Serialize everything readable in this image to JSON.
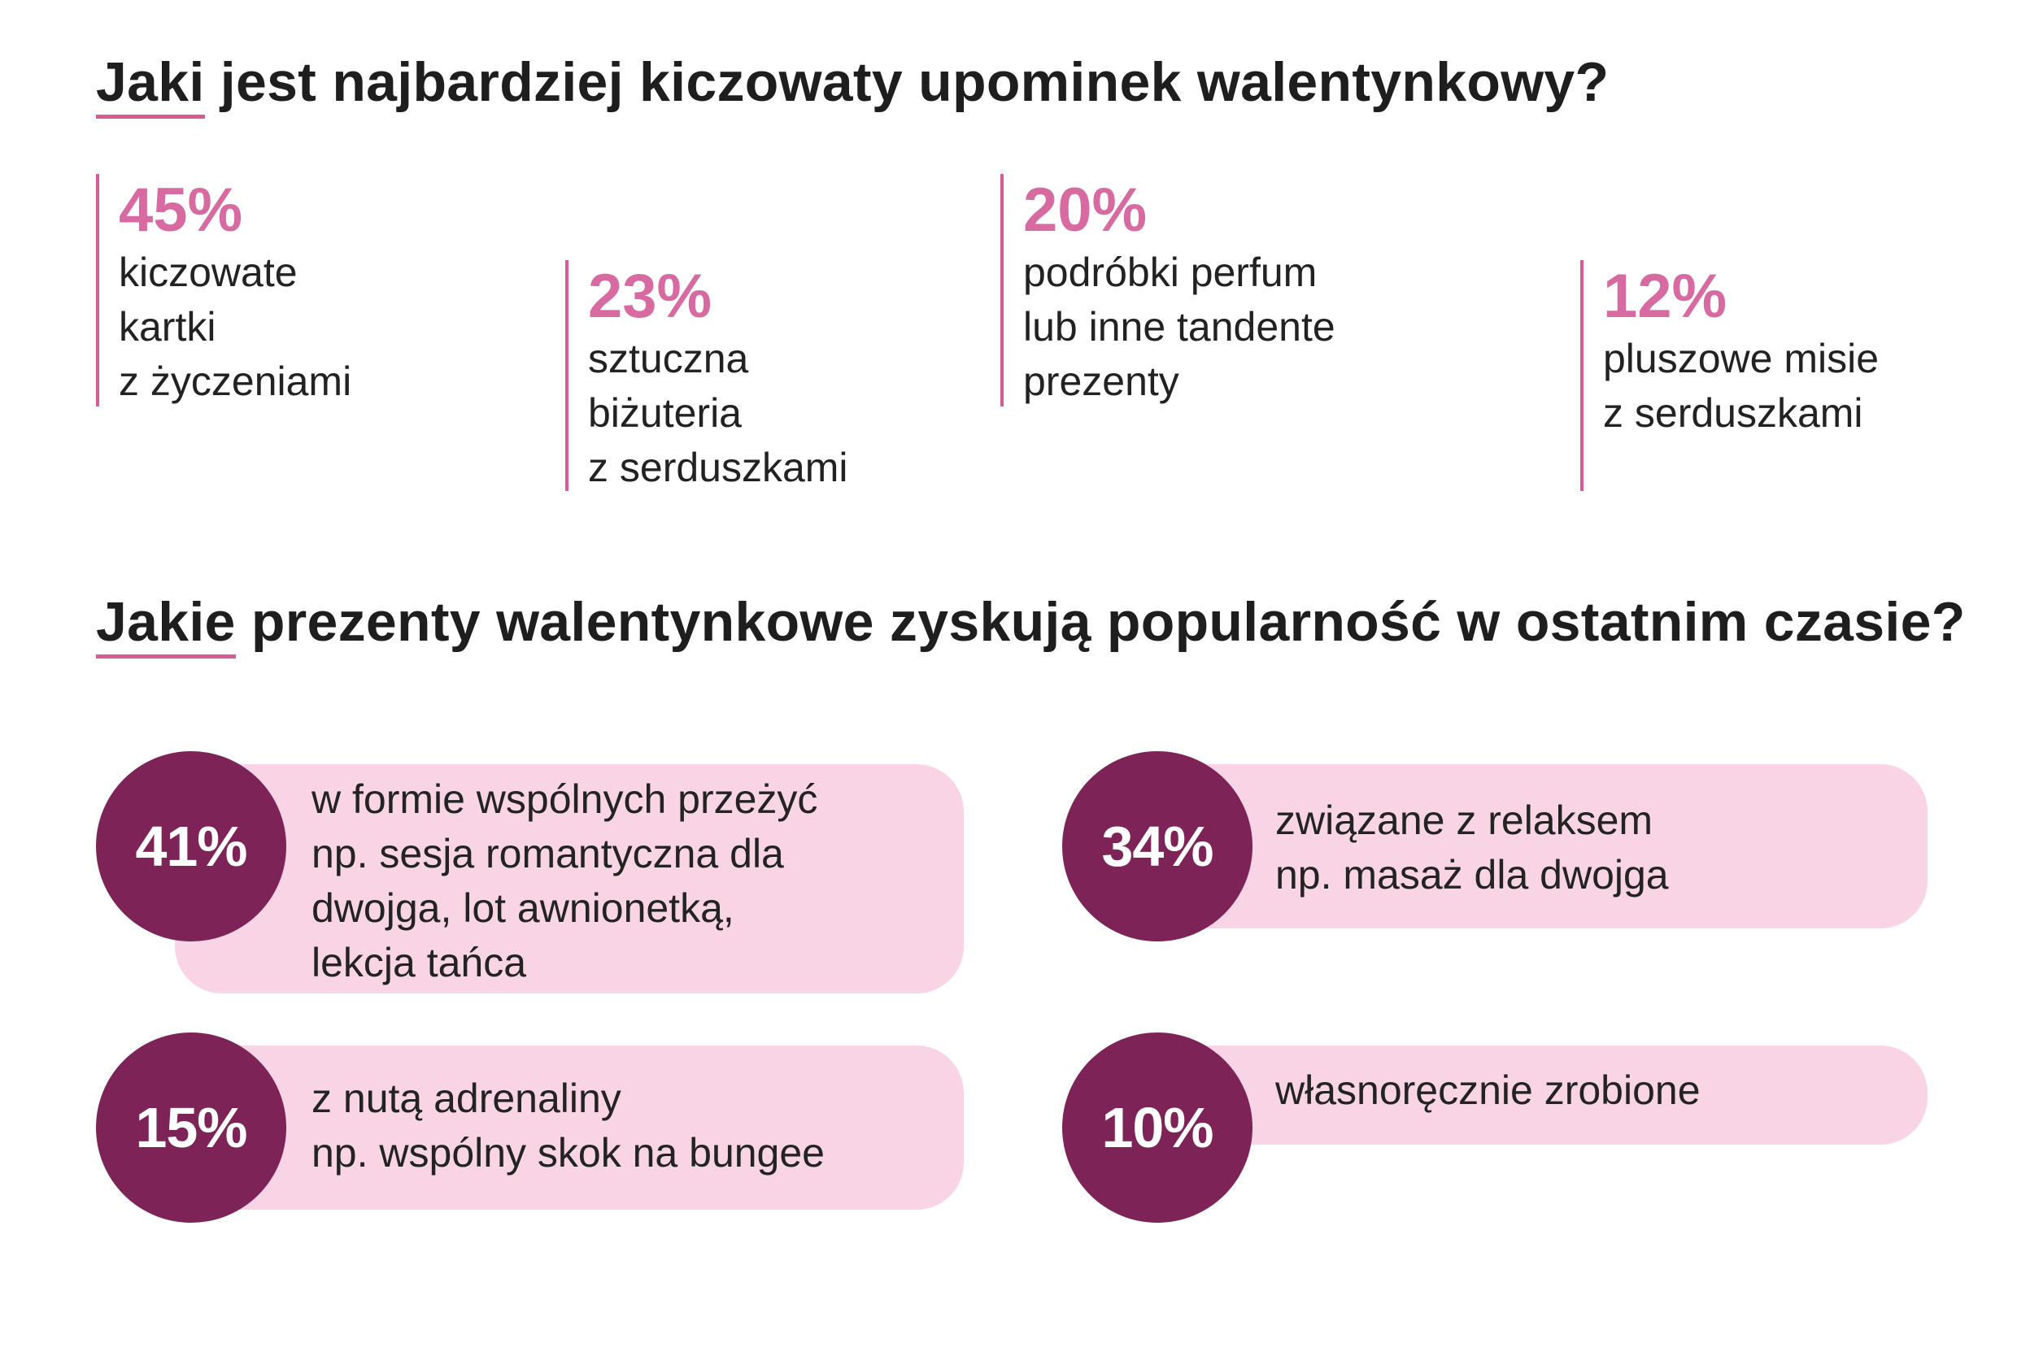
{
  "section1": {
    "title_first": "Jaki",
    "title_rest": " jest najbardziej kiczowaty upominek walentynkowy?",
    "accent_color": "#d65b97",
    "items": [
      {
        "percent": "45%",
        "description": "kiczowate\nkartki\nz życzeniami"
      },
      {
        "percent": "23%",
        "description": "sztuczna\nbiżuteria\nz serduszkami"
      },
      {
        "percent": "20%",
        "description": "podróbki perfum\nlub inne tandente\nprezenty"
      },
      {
        "percent": "12%",
        "description": "pluszowe misie\nz serduszkami"
      }
    ]
  },
  "section2": {
    "title_first": "Jakie",
    "title_rest": " prezenty walentynkowe zyskują popularność w ostatnim czasie?",
    "circle_color": "#7e2357",
    "pill_color": "#f9d4e5",
    "items": [
      {
        "percent": "41%",
        "description": "w formie wspólnych przeżyć\nnp. sesja romantyczna dla\ndwojga, lot awnionetką,\nlekcja tańca"
      },
      {
        "percent": "34%",
        "description": "związane z relaksem\nnp. masaż dla dwojga"
      },
      {
        "percent": "15%",
        "description": "z nutą adrenaliny\nnp. wspólny skok na bungee"
      },
      {
        "percent": "10%",
        "description": "własnoręcznie zrobione"
      }
    ]
  }
}
